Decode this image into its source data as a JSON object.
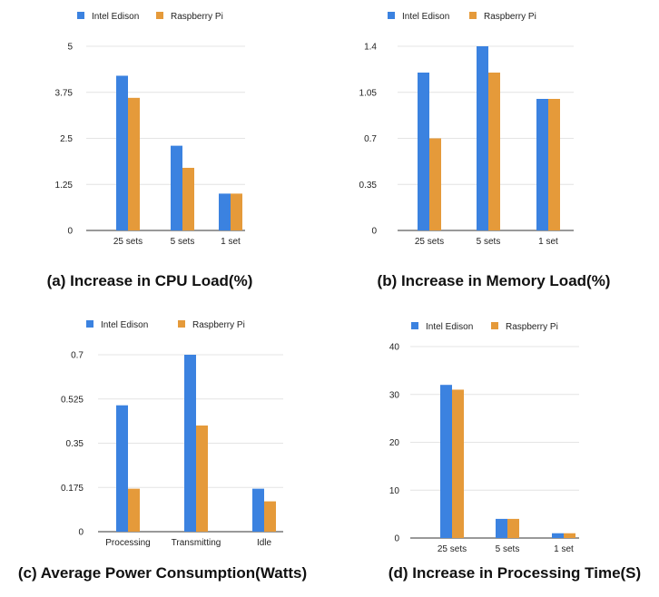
{
  "colors": {
    "intel": "#3b82e0",
    "raspberry": "#e59a3a"
  },
  "chart_data": [
    {
      "type": "bar",
      "caption": "(a)  Increase in CPU Load(%)",
      "categories": [
        "25 sets",
        "5 sets",
        "1 set"
      ],
      "series": [
        {
          "name": "Intel  Edison",
          "values": [
            4.2,
            2.3,
            1.0
          ]
        },
        {
          "name": "Raspberry  Pi",
          "values": [
            3.6,
            1.7,
            1.0
          ]
        }
      ],
      "ylim": [
        0,
        5
      ],
      "yticks": [
        0,
        1.25,
        2.5,
        3.75,
        5
      ],
      "ytick_labels": [
        "0",
        "1.25",
        "2.5",
        "3.75",
        "5"
      ],
      "legend": "top",
      "grid": true
    },
    {
      "type": "bar",
      "caption": "(b)  Increase in Memory Load(%)",
      "categories": [
        "25 sets",
        "5 sets",
        "1 set"
      ],
      "series": [
        {
          "name": "Intel  Edison",
          "values": [
            1.2,
            1.4,
            1.0
          ]
        },
        {
          "name": "Raspberry  Pi",
          "values": [
            0.7,
            1.2,
            1.0
          ]
        }
      ],
      "ylim": [
        0,
        1.4
      ],
      "yticks": [
        0,
        0.35,
        0.7,
        1.05,
        1.4
      ],
      "ytick_labels": [
        "0",
        "0.35",
        "0.7",
        "1.05",
        "1.4"
      ],
      "legend": "top",
      "grid": true
    },
    {
      "type": "bar",
      "caption": "(c) Average Power Consumption(Watts)",
      "categories": [
        "Processing",
        "Transmitting",
        "Idle"
      ],
      "series": [
        {
          "name": "Intel  Edison",
          "values": [
            0.5,
            0.7,
            0.17
          ]
        },
        {
          "name": "Raspberry  Pi",
          "values": [
            0.17,
            0.42,
            0.12
          ]
        }
      ],
      "ylim": [
        0,
        0.7
      ],
      "yticks": [
        0,
        0.175,
        0.35,
        0.525,
        0.7
      ],
      "ytick_labels": [
        "0",
        "0.175",
        "0.35",
        "0.525",
        "0.7"
      ],
      "legend": "top",
      "grid": true
    },
    {
      "type": "bar",
      "caption": "(d) Increase in Processing Time(S)",
      "categories": [
        "25 sets",
        "5 sets",
        "1 set"
      ],
      "series": [
        {
          "name": "Intel  Edison",
          "values": [
            32,
            4,
            1
          ]
        },
        {
          "name": "Raspberry  Pi",
          "values": [
            31,
            4,
            1
          ]
        }
      ],
      "ylim": [
        0,
        40
      ],
      "yticks": [
        0,
        10,
        20,
        30,
        40
      ],
      "ytick_labels": [
        "0",
        "10",
        "20",
        "30",
        "40"
      ],
      "legend": "top",
      "grid": true
    }
  ]
}
